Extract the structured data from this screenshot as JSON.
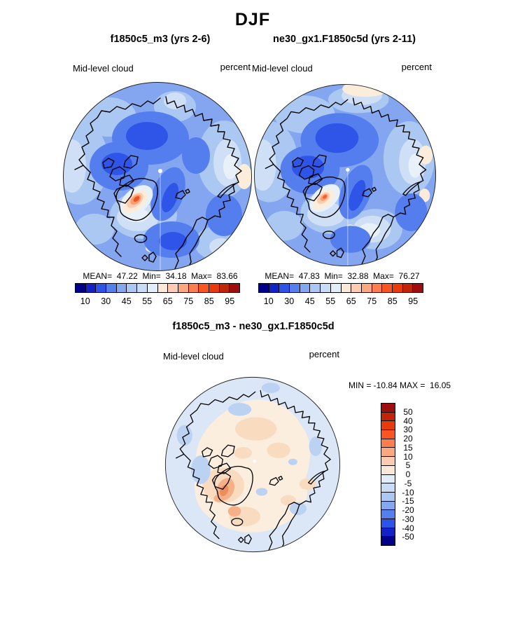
{
  "figure": {
    "season_title": "DJF",
    "panel1": {
      "title": "f1850c5_m3 (yrs 2-6)",
      "variable": "Mid-level cloud",
      "units": "percent",
      "stats_text": "MEAN=  47.22  Min=  34.18  Max=  83.66",
      "colorbar_ticks": [
        "10",
        "30",
        "45",
        "55",
        "65",
        "75",
        "85",
        "95"
      ]
    },
    "panel2": {
      "title": "ne30_gx1.F1850c5d (yrs 2-11)",
      "variable": "Mid-level cloud",
      "units": "percent",
      "stats_text": "MEAN=  47.83  Min=  32.88  Max=  76.27",
      "colorbar_ticks": [
        "10",
        "30",
        "45",
        "55",
        "65",
        "75",
        "85",
        "95"
      ]
    },
    "diff_panel": {
      "title": "f1850c5_m3 - ne30_gx1.F1850c5d",
      "variable": "Mid-level cloud",
      "units": "percent",
      "minmax_text": "MIN = -10.84 MAX =  16.05",
      "colorbar_labels": [
        "50",
        "40",
        "30",
        "20",
        "15",
        "10",
        "5",
        "0",
        "-5",
        "-10",
        "-15",
        "-20",
        "-30",
        "-40",
        "-50"
      ]
    }
  },
  "palettes": {
    "cloud_low_to_high": [
      "#00008b",
      "#1222c8",
      "#2c54e8",
      "#5480ee",
      "#84a8f0",
      "#abc8f2",
      "#c8dcf6",
      "#e2edfa",
      "#fce8d8",
      "#fcccb2",
      "#fba881",
      "#fb7d50",
      "#f95520",
      "#e83a0c",
      "#c22408",
      "#9e0e0e"
    ],
    "diff_top_to_bottom": [
      "#9e0e0e",
      "#c22408",
      "#e83a0c",
      "#f95520",
      "#fb7d50",
      "#fba881",
      "#fcccb2",
      "#fce8d8",
      "#e2edfa",
      "#c8dcf6",
      "#abc8f2",
      "#84a8f0",
      "#5480ee",
      "#2c54e8",
      "#1222c8",
      "#00008b"
    ]
  },
  "chart_data": [
    {
      "type": "heatmap",
      "subtype": "north-polar-stereographic-contour-map",
      "season": "DJF",
      "title": "f1850c5_m3 (yrs 2-6)",
      "variable": "Mid-level cloud",
      "units": "percent",
      "stats": {
        "mean": 47.22,
        "min": 34.18,
        "max": 83.66
      },
      "contour_levels": [
        10,
        20,
        30,
        40,
        45,
        50,
        55,
        60,
        65,
        70,
        75,
        80,
        85,
        90,
        95
      ],
      "labeled_levels": [
        10,
        30,
        45,
        55,
        65,
        75,
        85,
        95
      ],
      "colormap": "blue-to-red (16 bins)",
      "legend_position": "bottom",
      "description": "Arctic view; mostly 40-55% cloud (blues), local maximum >75% (orange/red) over southern Greenland, lighter 55-65% patches near Greenland, Bering side and eastern Siberia edge."
    },
    {
      "type": "heatmap",
      "subtype": "north-polar-stereographic-contour-map",
      "season": "DJF",
      "title": "ne30_gx1.F1850c5d (yrs 2-11)",
      "variable": "Mid-level cloud",
      "units": "percent",
      "stats": {
        "mean": 47.83,
        "min": 32.88,
        "max": 76.27
      },
      "contour_levels": [
        10,
        20,
        30,
        40,
        45,
        50,
        55,
        60,
        65,
        70,
        75,
        80,
        85,
        90,
        95
      ],
      "labeled_levels": [
        10,
        30,
        45,
        55,
        65,
        75,
        85,
        95
      ],
      "colormap": "blue-to-red (16 bins)",
      "legend_position": "bottom",
      "description": "Similar pattern to panel 1 with a smaller orange maximum over southern Greenland, light 55-65% band over Scandinavia and a 60-65% (cream) patch at the top edge."
    },
    {
      "type": "heatmap",
      "subtype": "north-polar-stereographic-contour-difference-map",
      "season": "DJF",
      "title": "f1850c5_m3 - ne30_gx1.F1850c5d",
      "variable": "Mid-level cloud",
      "units": "percent",
      "stats": {
        "min": -10.84,
        "max": 16.05
      },
      "contour_levels": [
        -50,
        -40,
        -30,
        -20,
        -15,
        -10,
        -5,
        0,
        5,
        10,
        15,
        20,
        30,
        40,
        50
      ],
      "colormap": "blue-to-red diverging (16 bins)",
      "legend_position": "right",
      "description": "Mostly small differences: pale positive (0 to +5) over the central Arctic and Greenland with +5 to +15 patches near southern Greenland, pale negative (-5 to 0) around the periphery."
    }
  ]
}
